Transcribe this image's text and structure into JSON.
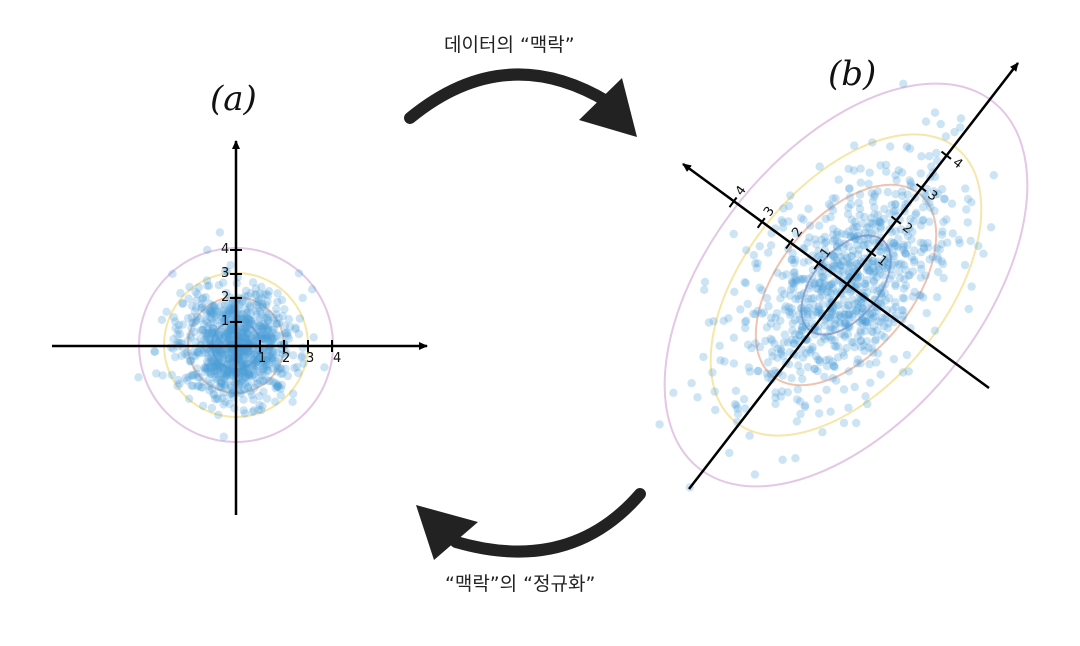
{
  "panel_a": {
    "label": "(a)",
    "tick_labels": [
      "1",
      "2",
      "3",
      "4"
    ]
  },
  "panel_b": {
    "label": "(b)",
    "tick_labels": [
      "1",
      "2",
      "3",
      "4"
    ]
  },
  "arrow_top": {
    "caption": "데이터의 “맥락”"
  },
  "arrow_bottom": {
    "caption": "“맥락”의 “정규화”"
  },
  "colors": {
    "points": "#4a9fd8",
    "axis": "#000000",
    "arrow": "#222222",
    "contour_1": "#b8a8c8",
    "contour_2": "#f0c2b0",
    "contour_3": "#f6e6a8",
    "contour_4": "#e4c6e6"
  }
}
